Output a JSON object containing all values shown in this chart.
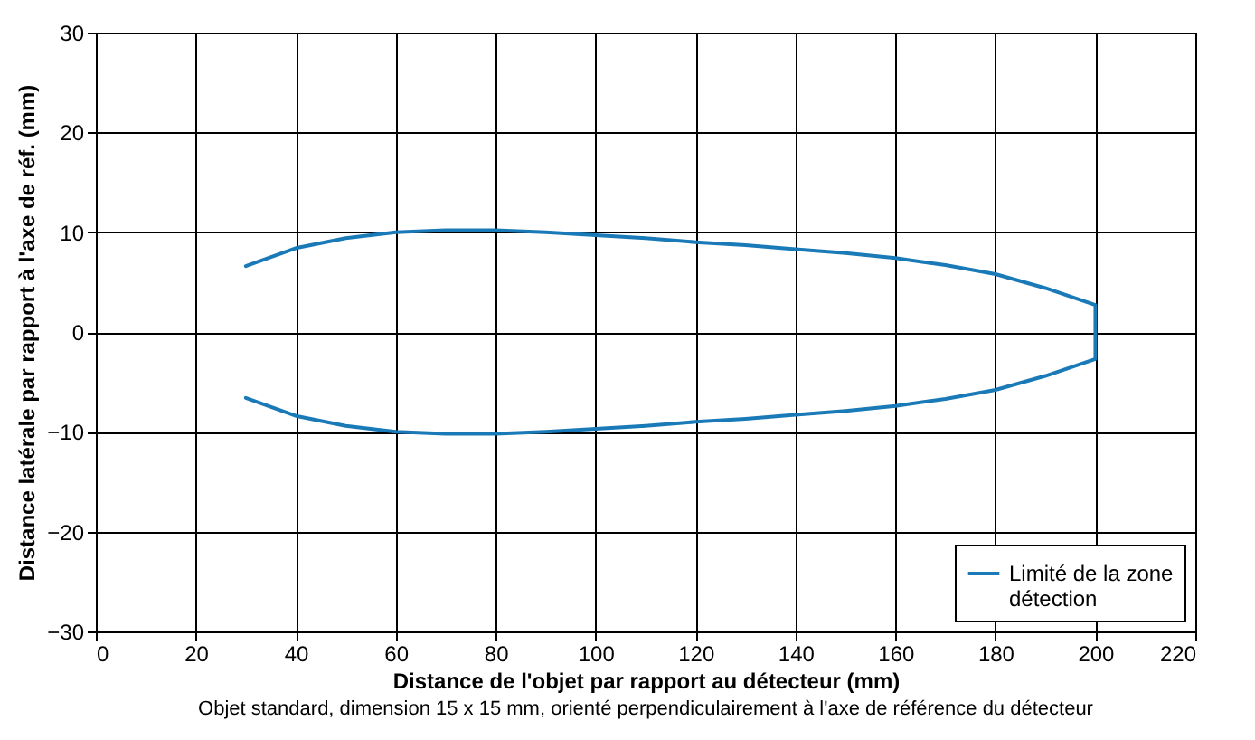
{
  "chart_data": {
    "type": "line",
    "xlabel": "Distance de l'objet par rapport au détecteur (mm)",
    "ylabel": "Distance latérale par rapport à l'axe de réf. (mm)",
    "annotations": [
      "Objet standard, dimension 15 x 15 mm, orienté perpendiculairement à l'axe de référence du détecteur"
    ],
    "series": [
      {
        "name": "Limité de la zone détection",
        "color": "#1a7ab8",
        "x": [
          30,
          40,
          50,
          60,
          70,
          80,
          90,
          100,
          110,
          120,
          130,
          140,
          150,
          160,
          170,
          180,
          190,
          200,
          200,
          190,
          180,
          170,
          160,
          150,
          140,
          130,
          120,
          110,
          100,
          90,
          80,
          70,
          60,
          50,
          40,
          30
        ],
        "values": [
          6.6,
          8.4,
          9.4,
          10,
          10.2,
          10.2,
          10,
          9.7,
          9.4,
          9,
          8.7,
          8.3,
          7.9,
          7.4,
          6.7,
          5.8,
          4.4,
          2.7,
          -2.7,
          -4.4,
          -5.8,
          -6.7,
          -7.4,
          -7.9,
          -8.3,
          -8.7,
          -9,
          -9.4,
          -9.7,
          -10,
          -10.2,
          -10.2,
          -10,
          -9.4,
          -8.4,
          -6.6
        ]
      }
    ],
    "xlim": [
      0,
      220
    ],
    "xticks": [
      0,
      20,
      40,
      60,
      80,
      100,
      120,
      140,
      160,
      180,
      200,
      220
    ],
    "ylim": [
      -30,
      30
    ],
    "yticks": [
      -30,
      -20,
      -10,
      0,
      10,
      20,
      30
    ],
    "grid": true,
    "legend": "bottom right",
    "marker": "none",
    "line_style": "solid"
  }
}
